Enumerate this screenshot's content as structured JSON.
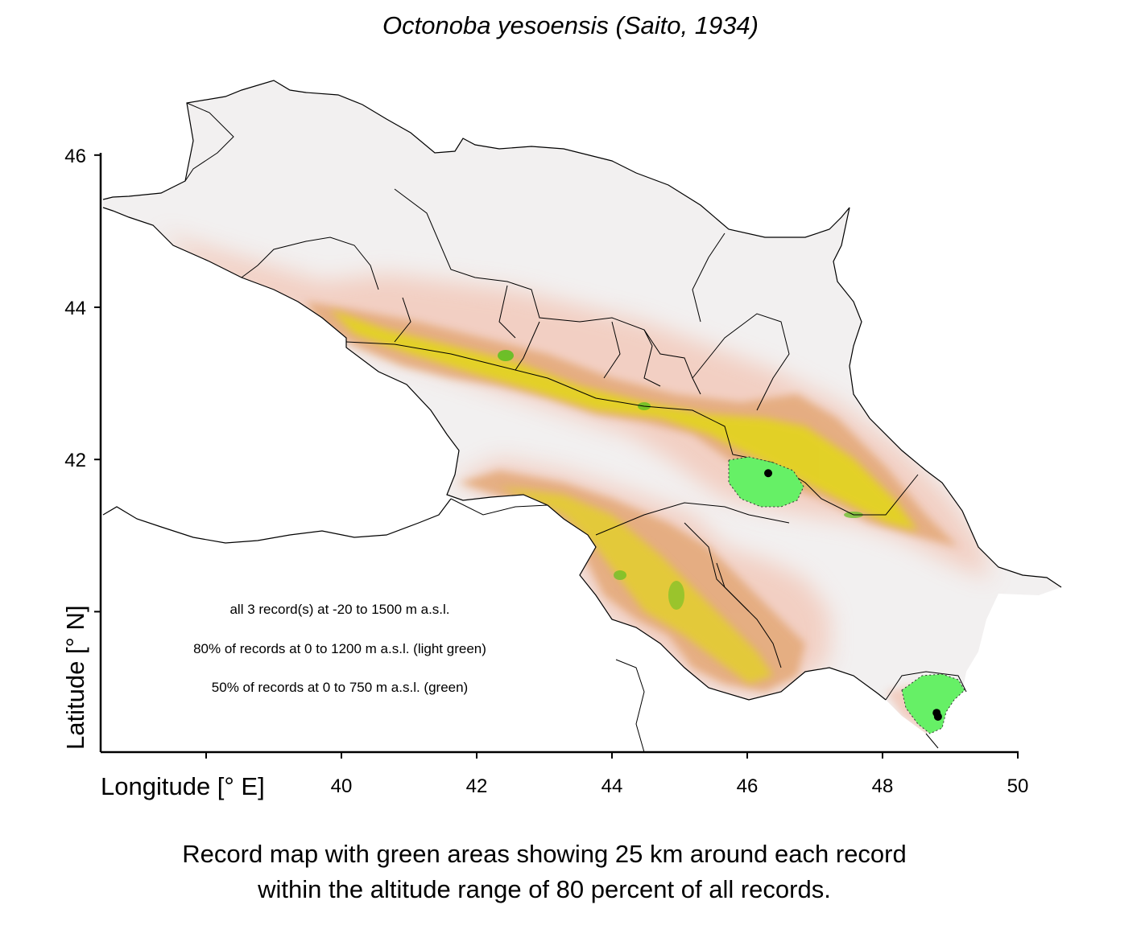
{
  "title": "Octonoba yesoensis (Saito, 1934)",
  "x_axis": {
    "title": "Longitude [° E]",
    "ticks": [
      {
        "value": 38,
        "label": ""
      },
      {
        "value": 40,
        "label": "40"
      },
      {
        "value": 42,
        "label": "42"
      },
      {
        "value": 44,
        "label": "44"
      },
      {
        "value": 46,
        "label": "46"
      },
      {
        "value": 48,
        "label": "48"
      },
      {
        "value": 50,
        "label": "50"
      }
    ],
    "range": [
      36.45,
      50
    ]
  },
  "y_axis": {
    "title": "Latitude [° N]",
    "ticks": [
      {
        "value": 46,
        "label": "46"
      },
      {
        "value": 44,
        "label": "44"
      },
      {
        "value": 42,
        "label": "42"
      },
      {
        "value": 40,
        "label": ""
      }
    ],
    "range": [
      38.15,
      46
    ]
  },
  "stats": {
    "line1": "all 3 record(s) at  -20  to  1500  m a.s.l.",
    "line2": "80% of records at 0 to 1200  m a.s.l. (light green)",
    "line3": "50% of records at 0 to 750  m a.s.l. (green)"
  },
  "caption": {
    "line1": "Record map with green areas showing 25 km around each record",
    "line2": "within the altitude range of 80 percent of all records."
  },
  "records": [
    {
      "lon": 46.31,
      "lat": 41.82
    },
    {
      "lon": 48.8,
      "lat": 38.67
    },
    {
      "lon": 48.82,
      "lat": 38.62
    }
  ],
  "colors": {
    "lowland": "#f2f0f0",
    "foothills": "#f2c4b4",
    "mountains": "#e3a877",
    "highlands": "#e2e000",
    "summits": "#5fc020",
    "record_area": "#66f066",
    "record_point": "#000000",
    "borders": "#000000"
  }
}
